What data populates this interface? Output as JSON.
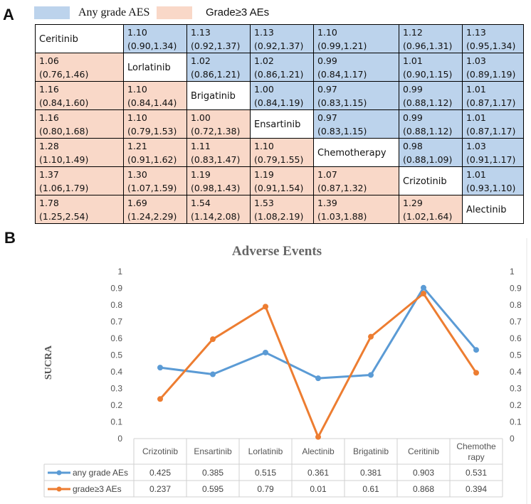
{
  "panel_a": {
    "letter": "A",
    "legend": [
      {
        "label": "Any grade AES",
        "color": "#bcd3ec"
      },
      {
        "label": "Grade≥3 AEs",
        "color": "#f9d8c8"
      }
    ],
    "matrix": {
      "treatments": [
        "Ceritinib",
        "Lorlatinib",
        "Brigatinib",
        "Ensartinib",
        "Chemotherapy",
        "Crizotinib",
        "Alectinib"
      ],
      "rows": [
        [
          "Ceritinib",
          "1.10 (0.90,1.34)",
          "1.13 (0.92,1.37)",
          "1.13 (0.92,1.37)",
          "1.10 (0.99,1.21)",
          "1.12 (0.96,1.31)",
          "1.13 (0.95,1.34)"
        ],
        [
          "1.06 (0.76,1.46)",
          "Lorlatinib",
          "1.02 (0.86,1.21)",
          "1.02 (0.86,1.21)",
          "0.99 (0.84,1.17)",
          "1.01 (0.90,1.15)",
          "1.03 (0.89,1.19)"
        ],
        [
          "1.16 (0.84,1.60)",
          "1.10 (0.84,1.44)",
          "Brigatinib",
          "1.00 (0.84,1.19)",
          "0.97 (0.83,1.15)",
          "0.99 (0.88,1.12)",
          "1.01 (0.87,1.17)"
        ],
        [
          "1.16 (0.80,1.68)",
          "1.10 (0.79,1.53)",
          "1.00 (0.72,1.38)",
          "Ensartinib",
          "0.97 (0.83,1.15)",
          "0.99 (0.88,1.12)",
          "1.01 (0.87,1.17)"
        ],
        [
          "1.28 (1.10,1.49)",
          "1.21 (0.91,1.62)",
          "1.11 (0.83,1.47)",
          "1.10 (0.79,1.55)",
          "Chemotherapy",
          "0.98 (0.88,1.09)",
          "1.03 (0.91,1.17)"
        ],
        [
          "1.37 (1.06,1.79)",
          "1.30 (1.07,1.59)",
          "1.19 (0.98,1.43)",
          "1.19 (0.91,1.54)",
          "1.07 (0.87,1.32)",
          "Crizotinib",
          "1.01 (0.93,1.10)"
        ],
        [
          "1.78 (1.25,2.54)",
          "1.69 (1.24,2.29)",
          "1.54 (1.14,2.08)",
          "1.53 (1.08,2.19)",
          "1.39 (1.03,1.88)",
          "1.29 (1.02,1.64)",
          "Alectinib"
        ]
      ]
    }
  },
  "panel_b": {
    "letter": "B"
  },
  "chart_data": {
    "type": "line",
    "title": "Adverse Events",
    "ylabel": "SUCRA",
    "xlabel": "",
    "ylim": [
      0,
      1
    ],
    "yticks": [
      "0",
      "0.1",
      "0.2",
      "0.3",
      "0.4",
      "0.5",
      "0.6",
      "0.7",
      "0.8",
      "0.9",
      "1"
    ],
    "categories": [
      "Crizotinib",
      "Ensartinib",
      "Lorlatinib",
      "Alectinib",
      "Brigatinib",
      "Ceritinib",
      "Chemotherapy"
    ],
    "category_display": [
      [
        "Crizotinib"
      ],
      [
        "Ensartinib"
      ],
      [
        "Lorlatinib"
      ],
      [
        "Alectinib"
      ],
      [
        "Brigatinib"
      ],
      [
        "Ceritinib"
      ],
      [
        "Chemothe",
        "rapy"
      ]
    ],
    "series": [
      {
        "name": "any grade AEs",
        "color": "#5b9bd5",
        "values": [
          0.425,
          0.385,
          0.515,
          0.361,
          0.381,
          0.903,
          0.531
        ],
        "labels": [
          "0.425",
          "0.385",
          "0.515",
          "0.361",
          "0.381",
          "0.903",
          "0.531"
        ]
      },
      {
        "name": "grade≥3 AEs",
        "color": "#ed7d31",
        "values": [
          0.237,
          0.595,
          0.79,
          0.01,
          0.61,
          0.868,
          0.394
        ],
        "labels": [
          "0.237",
          "0.595",
          "0.79",
          "0.01",
          "0.61",
          "0.868",
          "0.394"
        ]
      }
    ],
    "legend": "data-table-below",
    "secondary_axis": true
  }
}
